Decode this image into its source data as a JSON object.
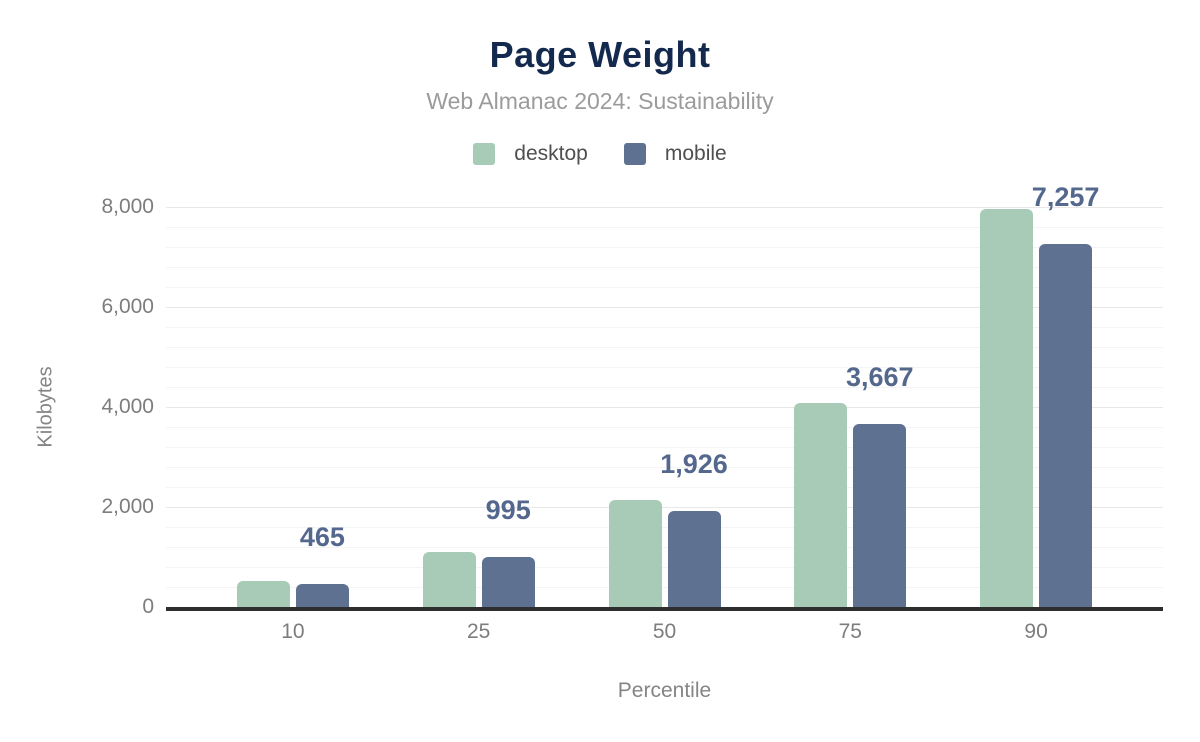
{
  "figure": {
    "title": "Page Weight",
    "subtitle": "Web Almanac 2024: Sustainability"
  },
  "legend": {
    "items": [
      {
        "label": "desktop",
        "color": "#a8cbb8"
      },
      {
        "label": "mobile",
        "color": "#5f7190"
      }
    ]
  },
  "chart_data": {
    "type": "bar",
    "title": "Page Weight",
    "subtitle": "Web Almanac 2024: Sustainability",
    "categories": [
      "10",
      "25",
      "50",
      "75",
      "90"
    ],
    "series": [
      {
        "name": "desktop",
        "color": "#a8cbb8",
        "values": [
          520,
          1110,
          2140,
          4080,
          7960
        ],
        "estimated": true
      },
      {
        "name": "mobile",
        "color": "#5f7190",
        "values": [
          465,
          995,
          1926,
          3667,
          7257
        ],
        "data_labels": [
          "465",
          "995",
          "1,926",
          "3,667",
          "7,257"
        ]
      }
    ],
    "xlabel": "Percentile",
    "ylabel": "Kilobytes",
    "ylim": [
      0,
      8000
    ],
    "yticks": [
      0,
      2000,
      4000,
      6000,
      8000
    ],
    "ytick_labels": [
      "0",
      "2,000",
      "4,000",
      "6,000",
      "8,000"
    ],
    "minor_gridline_step": 400,
    "grid": true,
    "legend_position": "top",
    "data_label_series": "mobile"
  },
  "colors": {
    "background": "#ffffff",
    "title": "#13294d",
    "subtitle": "#9b9b9b",
    "legend_text": "#4f4f4f",
    "tick_text": "#7d7d7d",
    "axis_title_text": "#858585",
    "axis_line": "#2e2e2e",
    "grid_major": "#e8e8e8",
    "grid_minor": "#f4f4f4",
    "data_label": "#54688e"
  }
}
